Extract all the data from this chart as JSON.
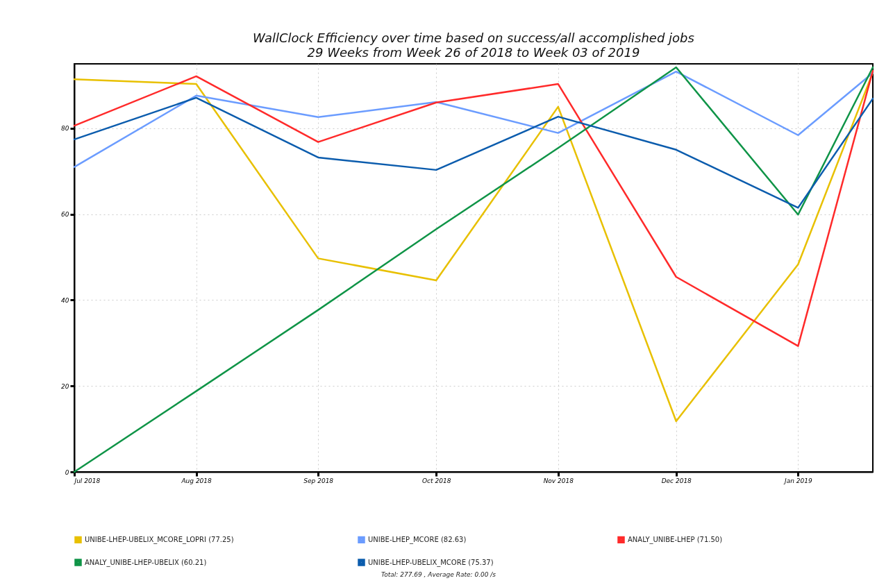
{
  "chart_data": {
    "type": "line",
    "title": "WallClock Efficiency over time based on success/all accomplished jobs",
    "subtitle": "29 Weeks from Week 26 of 2018 to Week 03 of 2019",
    "x": [
      "2018-07-01",
      "2018-08-01",
      "2018-09-01",
      "2018-10-01",
      "2018-11-01",
      "2018-12-01",
      "2019-01-01",
      "2019-01-20"
    ],
    "series": [
      {
        "name": "UNIBE-LHEP-UBELIX_MCORE_LOPRI (77.25)",
        "color": "#e8c000",
        "values": [
          91.4,
          90.3,
          49.7,
          44.6,
          85.0,
          11.8,
          48.3,
          93.0
        ]
      },
      {
        "name": "UNIBE-LHEP_MCORE (82.63)",
        "color": "#6b9cff",
        "values": [
          71.0,
          87.6,
          82.6,
          86.1,
          78.9,
          93.2,
          78.4,
          92.9
        ]
      },
      {
        "name": "ANALY_UNIBE-LHEP (71.50)",
        "color": "#ff2a2a",
        "values": [
          80.6,
          92.1,
          76.8,
          86.0,
          90.3,
          45.4,
          29.3,
          93.4
        ]
      },
      {
        "name": "ANALY_UNIBE-LHEP-UBELIX (60.21)",
        "color": "#0f9447",
        "values": [
          0,
          18.8,
          37.7,
          56.5,
          75.4,
          94.2,
          59.9,
          94.2
        ]
      },
      {
        "name": "UNIBE-LHEP-UBELIX_MCORE (75.37)",
        "color": "#0b5cad",
        "values": [
          77.4,
          87.1,
          73.2,
          70.3,
          82.7,
          75.0,
          61.5,
          86.9
        ]
      }
    ],
    "xlim": [
      "2018-07-01",
      "2019-01-20"
    ],
    "xticks": [
      {
        "value": "2018-07-01",
        "label": "Jul 2018"
      },
      {
        "value": "2018-08-01",
        "label": "Aug 2018"
      },
      {
        "value": "2018-09-01",
        "label": "Sep 2018"
      },
      {
        "value": "2018-10-01",
        "label": "Oct 2018"
      },
      {
        "value": "2018-11-01",
        "label": "Nov 2018"
      },
      {
        "value": "2018-12-01",
        "label": "Dec 2018"
      },
      {
        "value": "2019-01-01",
        "label": "Jan 2019"
      }
    ],
    "ylim": [
      0,
      95
    ],
    "yticks": [
      0,
      20,
      40,
      60,
      80
    ],
    "grid": true,
    "legend": "bottom",
    "marker": "none",
    "line_style": "solid",
    "annotations": [
      "Total: 277.69 , Average Rate: 0.00 /s"
    ]
  }
}
